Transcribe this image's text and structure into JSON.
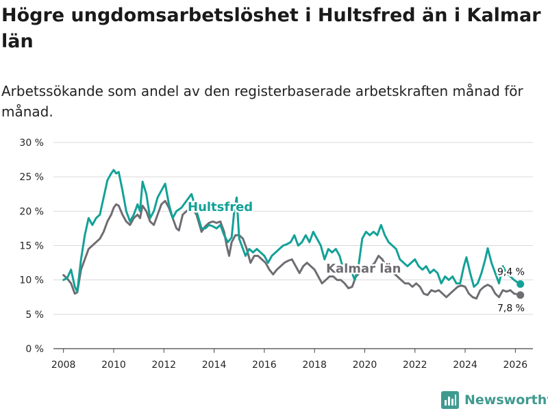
{
  "title": "Högre ungdomsarbetslöshet i Hultsfred än i Kalmar län",
  "subtitle": "Arbetssökande som andel av den registerbaserade arbetskraften månad för månad.",
  "brand": "Newsworthy",
  "colors": {
    "hultsfred": "#13a197",
    "kalmar": "#6f6c72",
    "grid": "#d9d9d9"
  },
  "chart_data": {
    "type": "line",
    "title": "Högre ungdomsarbetslöshet i Hultsfred än i Kalmar län",
    "xlabel": "",
    "ylabel": "",
    "xlim": [
      2007.6,
      2026.7
    ],
    "ylim": [
      0,
      30
    ],
    "grid": true,
    "x_ticks": [
      2008,
      2010,
      2012,
      2014,
      2016,
      2018,
      2020,
      2022,
      2024,
      2026
    ],
    "x_tick_labels": [
      "2008",
      "2010",
      "2012",
      "2014",
      "2016",
      "2018",
      "2020",
      "2022",
      "2024",
      "2026"
    ],
    "y_ticks": [
      0,
      5,
      10,
      15,
      20,
      25,
      30
    ],
    "y_tick_labels": [
      "0 %",
      "5 %",
      "10 %",
      "15 %",
      "20 %",
      "25 %",
      "30 %"
    ],
    "series": [
      {
        "name": "Hultsfred",
        "points": [
          [
            2008.0,
            10.0
          ],
          [
            2008.15,
            10.3
          ],
          [
            2008.3,
            11.5
          ],
          [
            2008.45,
            9.0
          ],
          [
            2008.55,
            8.3
          ],
          [
            2008.7,
            13.0
          ],
          [
            2008.85,
            16.5
          ],
          [
            2009.0,
            19.0
          ],
          [
            2009.15,
            18.0
          ],
          [
            2009.3,
            19.0
          ],
          [
            2009.45,
            19.5
          ],
          [
            2009.6,
            22.0
          ],
          [
            2009.75,
            24.5
          ],
          [
            2009.9,
            25.5
          ],
          [
            2010.0,
            26.0
          ],
          [
            2010.1,
            25.5
          ],
          [
            2010.2,
            25.7
          ],
          [
            2010.35,
            23.0
          ],
          [
            2010.5,
            20.0
          ],
          [
            2010.65,
            18.5
          ],
          [
            2010.8,
            19.5
          ],
          [
            2010.95,
            21.0
          ],
          [
            2011.05,
            20.0
          ],
          [
            2011.15,
            24.3
          ],
          [
            2011.3,
            22.5
          ],
          [
            2011.45,
            19.0
          ],
          [
            2011.6,
            20.0
          ],
          [
            2011.75,
            22.0
          ],
          [
            2011.9,
            23.0
          ],
          [
            2012.05,
            24.0
          ],
          [
            2012.2,
            21.0
          ],
          [
            2012.35,
            19.0
          ],
          [
            2012.5,
            20.0
          ],
          [
            2012.7,
            20.5
          ],
          [
            2012.9,
            21.5
          ],
          [
            2013.1,
            22.5
          ],
          [
            2013.3,
            20.0
          ],
          [
            2013.5,
            17.5
          ],
          [
            2013.65,
            17.5
          ],
          [
            2013.8,
            18.0
          ],
          [
            2013.95,
            17.8
          ],
          [
            2014.1,
            17.5
          ],
          [
            2014.25,
            18.0
          ],
          [
            2014.4,
            16.5
          ],
          [
            2014.55,
            15.5
          ],
          [
            2014.7,
            16.2
          ],
          [
            2014.8,
            20.0
          ],
          [
            2014.9,
            22.0
          ],
          [
            2015.0,
            16.0
          ],
          [
            2015.1,
            15.0
          ],
          [
            2015.25,
            13.5
          ],
          [
            2015.4,
            14.5
          ],
          [
            2015.55,
            14.0
          ],
          [
            2015.7,
            14.5
          ],
          [
            2015.85,
            14.0
          ],
          [
            2016.0,
            13.5
          ],
          [
            2016.15,
            12.5
          ],
          [
            2016.3,
            13.5
          ],
          [
            2016.45,
            14.0
          ],
          [
            2016.6,
            14.5
          ],
          [
            2016.75,
            15.0
          ],
          [
            2016.9,
            15.2
          ],
          [
            2017.05,
            15.5
          ],
          [
            2017.2,
            16.5
          ],
          [
            2017.35,
            15.0
          ],
          [
            2017.5,
            15.5
          ],
          [
            2017.65,
            16.5
          ],
          [
            2017.8,
            15.5
          ],
          [
            2017.95,
            17.0
          ],
          [
            2018.1,
            16.0
          ],
          [
            2018.25,
            15.0
          ],
          [
            2018.4,
            13.0
          ],
          [
            2018.55,
            14.5
          ],
          [
            2018.7,
            14.0
          ],
          [
            2018.85,
            14.5
          ],
          [
            2019.0,
            13.5
          ],
          [
            2019.15,
            11.5
          ],
          [
            2019.3,
            12.5
          ],
          [
            2019.45,
            11.5
          ],
          [
            2019.6,
            10.0
          ],
          [
            2019.75,
            12.0
          ],
          [
            2019.9,
            16.0
          ],
          [
            2020.05,
            17.0
          ],
          [
            2020.2,
            16.5
          ],
          [
            2020.35,
            17.0
          ],
          [
            2020.5,
            16.5
          ],
          [
            2020.65,
            18.0
          ],
          [
            2020.8,
            16.5
          ],
          [
            2020.95,
            15.5
          ],
          [
            2021.1,
            15.0
          ],
          [
            2021.25,
            14.5
          ],
          [
            2021.4,
            13.0
          ],
          [
            2021.55,
            12.5
          ],
          [
            2021.7,
            12.0
          ],
          [
            2021.85,
            12.5
          ],
          [
            2022.0,
            13.0
          ],
          [
            2022.15,
            12.0
          ],
          [
            2022.3,
            11.5
          ],
          [
            2022.45,
            12.0
          ],
          [
            2022.6,
            11.0
          ],
          [
            2022.75,
            11.5
          ],
          [
            2022.9,
            11.0
          ],
          [
            2023.05,
            9.5
          ],
          [
            2023.2,
            10.5
          ],
          [
            2023.35,
            10.0
          ],
          [
            2023.5,
            10.5
          ],
          [
            2023.65,
            9.5
          ],
          [
            2023.8,
            9.5
          ],
          [
            2023.95,
            12.0
          ],
          [
            2024.05,
            13.3
          ],
          [
            2024.2,
            11.0
          ],
          [
            2024.35,
            9.0
          ],
          [
            2024.5,
            9.5
          ],
          [
            2024.65,
            11.0
          ],
          [
            2024.8,
            13.0
          ],
          [
            2024.9,
            14.6
          ],
          [
            2025.05,
            12.5
          ],
          [
            2025.2,
            11.0
          ],
          [
            2025.35,
            9.5
          ],
          [
            2025.5,
            12.0
          ],
          [
            2025.65,
            11.0
          ],
          [
            2025.8,
            10.5
          ],
          [
            2025.95,
            10.0
          ],
          [
            2026.1,
            9.6
          ],
          [
            2026.2,
            9.4
          ]
        ]
      },
      {
        "name": "Kalmar län",
        "points": [
          [
            2008.0,
            10.7
          ],
          [
            2008.15,
            10.2
          ],
          [
            2008.3,
            9.5
          ],
          [
            2008.45,
            8.0
          ],
          [
            2008.55,
            8.2
          ],
          [
            2008.7,
            11.5
          ],
          [
            2008.85,
            13.0
          ],
          [
            2009.0,
            14.5
          ],
          [
            2009.15,
            15.0
          ],
          [
            2009.3,
            15.5
          ],
          [
            2009.45,
            16.0
          ],
          [
            2009.6,
            17.0
          ],
          [
            2009.75,
            18.5
          ],
          [
            2009.9,
            19.5
          ],
          [
            2010.0,
            20.5
          ],
          [
            2010.1,
            21.0
          ],
          [
            2010.2,
            20.8
          ],
          [
            2010.35,
            19.5
          ],
          [
            2010.5,
            18.5
          ],
          [
            2010.65,
            18.0
          ],
          [
            2010.8,
            19.0
          ],
          [
            2010.95,
            19.5
          ],
          [
            2011.05,
            19.0
          ],
          [
            2011.15,
            20.8
          ],
          [
            2011.3,
            20.0
          ],
          [
            2011.45,
            18.5
          ],
          [
            2011.6,
            18.0
          ],
          [
            2011.75,
            19.5
          ],
          [
            2011.9,
            21.0
          ],
          [
            2012.05,
            21.5
          ],
          [
            2012.2,
            20.5
          ],
          [
            2012.35,
            19.0
          ],
          [
            2012.5,
            17.5
          ],
          [
            2012.6,
            17.2
          ],
          [
            2012.75,
            19.5
          ],
          [
            2012.9,
            20.0
          ],
          [
            2013.1,
            20.5
          ],
          [
            2013.3,
            19.5
          ],
          [
            2013.5,
            17.0
          ],
          [
            2013.65,
            17.8
          ],
          [
            2013.8,
            18.3
          ],
          [
            2013.95,
            18.5
          ],
          [
            2014.1,
            18.3
          ],
          [
            2014.25,
            18.5
          ],
          [
            2014.4,
            17.0
          ],
          [
            2014.5,
            15.0
          ],
          [
            2014.6,
            13.5
          ],
          [
            2014.7,
            15.5
          ],
          [
            2014.85,
            16.5
          ],
          [
            2015.0,
            16.5
          ],
          [
            2015.15,
            16.0
          ],
          [
            2015.3,
            14.5
          ],
          [
            2015.45,
            12.5
          ],
          [
            2015.6,
            13.5
          ],
          [
            2015.75,
            13.5
          ],
          [
            2015.9,
            13.0
          ],
          [
            2016.05,
            12.5
          ],
          [
            2016.2,
            11.5
          ],
          [
            2016.35,
            10.8
          ],
          [
            2016.5,
            11.5
          ],
          [
            2016.65,
            12.0
          ],
          [
            2016.8,
            12.5
          ],
          [
            2016.95,
            12.8
          ],
          [
            2017.1,
            13.0
          ],
          [
            2017.25,
            12.0
          ],
          [
            2017.4,
            11.0
          ],
          [
            2017.55,
            12.0
          ],
          [
            2017.7,
            12.5
          ],
          [
            2017.85,
            12.0
          ],
          [
            2018.0,
            11.5
          ],
          [
            2018.15,
            10.5
          ],
          [
            2018.3,
            9.5
          ],
          [
            2018.45,
            10.0
          ],
          [
            2018.6,
            10.5
          ],
          [
            2018.75,
            10.5
          ],
          [
            2018.9,
            10.0
          ],
          [
            2019.05,
            10.0
          ],
          [
            2019.2,
            9.5
          ],
          [
            2019.35,
            8.8
          ],
          [
            2019.5,
            9.0
          ],
          [
            2019.65,
            10.5
          ],
          [
            2019.8,
            11.0
          ],
          [
            2019.95,
            11.5
          ],
          [
            2020.1,
            11.5
          ],
          [
            2020.25,
            12.0
          ],
          [
            2020.4,
            12.5
          ],
          [
            2020.55,
            13.5
          ],
          [
            2020.7,
            13.0
          ],
          [
            2020.85,
            12.0
          ],
          [
            2021.0,
            11.5
          ],
          [
            2021.15,
            11.0
          ],
          [
            2021.3,
            10.5
          ],
          [
            2021.45,
            10.0
          ],
          [
            2021.6,
            9.5
          ],
          [
            2021.75,
            9.5
          ],
          [
            2021.9,
            9.0
          ],
          [
            2022.05,
            9.5
          ],
          [
            2022.2,
            9.0
          ],
          [
            2022.35,
            8.0
          ],
          [
            2022.5,
            7.8
          ],
          [
            2022.65,
            8.5
          ],
          [
            2022.8,
            8.3
          ],
          [
            2022.95,
            8.5
          ],
          [
            2023.1,
            8.0
          ],
          [
            2023.25,
            7.5
          ],
          [
            2023.4,
            8.0
          ],
          [
            2023.55,
            8.5
          ],
          [
            2023.7,
            9.0
          ],
          [
            2023.85,
            9.2
          ],
          [
            2024.0,
            9.0
          ],
          [
            2024.15,
            8.0
          ],
          [
            2024.3,
            7.5
          ],
          [
            2024.45,
            7.3
          ],
          [
            2024.6,
            8.5
          ],
          [
            2024.75,
            9.0
          ],
          [
            2024.9,
            9.3
          ],
          [
            2025.05,
            9.0
          ],
          [
            2025.2,
            8.0
          ],
          [
            2025.35,
            7.5
          ],
          [
            2025.5,
            8.5
          ],
          [
            2025.65,
            8.3
          ],
          [
            2025.8,
            8.5
          ],
          [
            2025.95,
            8.0
          ],
          [
            2026.1,
            7.9
          ],
          [
            2026.2,
            7.8
          ]
        ]
      }
    ],
    "annotations": {
      "hultsfred_label": "Hultsfred",
      "kalmar_label": "Kalmar län",
      "hultsfred_last": "9,4 %",
      "kalmar_last": "7,8 %"
    }
  }
}
